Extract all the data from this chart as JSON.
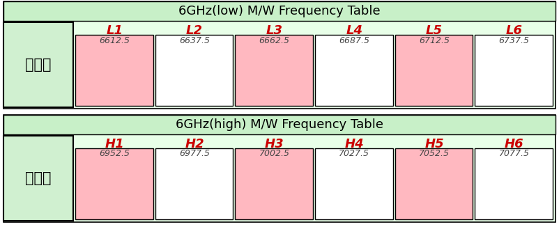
{
  "fig_width": 8.02,
  "fig_height": 3.26,
  "dpi": 100,
  "top_title": "6GHz(low) M/W Frequency Table",
  "bottom_title": "6GHz(high) M/W Frequency Table",
  "top_label": "송신소",
  "bottom_label": "연주소",
  "top_channels": [
    "L1",
    "L2",
    "L3",
    "L4",
    "L5",
    "L6"
  ],
  "top_freqs": [
    "6612.5",
    "6637.5",
    "6662.5",
    "6687.5",
    "6712.5",
    "6737.5"
  ],
  "bottom_channels": [
    "H1",
    "H2",
    "H3",
    "H4",
    "H5",
    "H6"
  ],
  "bottom_freqs": [
    "6952.5",
    "6977.5",
    "7002.5",
    "7027.5",
    "7052.5",
    "7077.5"
  ],
  "top_filled": [
    true,
    false,
    true,
    false,
    true,
    false
  ],
  "bottom_filled": [
    true,
    false,
    true,
    false,
    true,
    false
  ],
  "outer_bg": "#ffffff",
  "section_bg": "#e8ffe8",
  "title_bg": "#c8f0c8",
  "box_filled_color": "#ffb8c0",
  "box_empty_color": "#ffffff",
  "box_border_color": "#000000",
  "channel_color": "#cc0000",
  "freq_color": "#444444",
  "label_bg": "#d0f0d0",
  "title_fontsize": 13,
  "channel_fontsize": 13,
  "freq_fontsize": 9,
  "label_fontsize": 15
}
